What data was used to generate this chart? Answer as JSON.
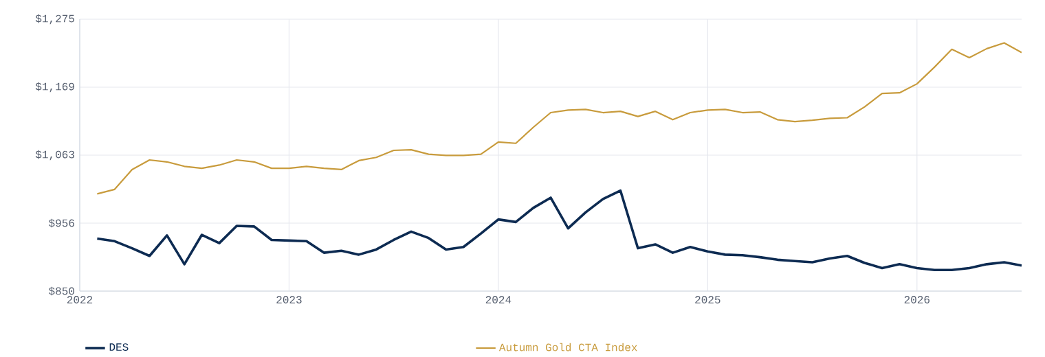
{
  "chart_data": {
    "type": "line",
    "x": [
      "2022-02",
      "2022-03",
      "2022-04",
      "2022-05",
      "2022-06",
      "2022-07",
      "2022-08",
      "2022-09",
      "2022-10",
      "2022-11",
      "2022-12",
      "2023-01",
      "2023-02",
      "2023-03",
      "2023-04",
      "2023-05",
      "2023-06",
      "2023-07",
      "2023-08",
      "2023-09",
      "2023-10",
      "2023-11",
      "2023-12",
      "2024-01",
      "2024-02",
      "2024-03",
      "2024-04",
      "2024-05",
      "2024-06",
      "2024-07",
      "2024-08",
      "2024-09",
      "2024-10",
      "2024-11",
      "2024-12",
      "2025-01",
      "2025-02",
      "2025-03",
      "2025-04",
      "2025-05",
      "2025-06",
      "2025-07",
      "2025-08",
      "2025-09",
      "2025-10",
      "2025-11",
      "2025-12",
      "2026-01",
      "2026-02",
      "2026-03",
      "2026-04",
      "2026-05",
      "2026-06",
      "2026-07"
    ],
    "series": [
      {
        "name": "DES",
        "color": "#0d2b52",
        "values": [
          932,
          928,
          917,
          905,
          937,
          892,
          938,
          925,
          952,
          951,
          930,
          929,
          928,
          910,
          913,
          907,
          915,
          930,
          943,
          933,
          915,
          919,
          940,
          962,
          958,
          980,
          996,
          948,
          973,
          994,
          1007,
          917,
          923,
          910,
          919,
          912,
          907,
          906,
          903,
          899,
          897,
          895,
          901,
          905,
          894,
          886,
          892,
          886,
          883,
          883,
          886,
          892,
          895,
          890
        ]
      },
      {
        "name": "Autumn Gold CTA Index",
        "color": "#c89b3c",
        "values": [
          1002,
          1009,
          1040,
          1055,
          1052,
          1045,
          1042,
          1047,
          1055,
          1052,
          1042,
          1042,
          1045,
          1042,
          1040,
          1054,
          1059,
          1070,
          1071,
          1064,
          1062,
          1062,
          1064,
          1083,
          1081,
          1106,
          1129,
          1133,
          1134,
          1129,
          1131,
          1123,
          1131,
          1118,
          1129,
          1133,
          1134,
          1129,
          1130,
          1118,
          1115,
          1117,
          1120,
          1121,
          1138,
          1159,
          1160,
          1174,
          1200,
          1228,
          1215,
          1229,
          1238,
          1223
        ]
      }
    ],
    "xlim": [
      "2022",
      "2026-07"
    ],
    "xticks": [
      "2022",
      "2023",
      "2024",
      "2025",
      "2026"
    ],
    "ylim": [
      850,
      1275
    ],
    "yticks": [
      {
        "value": 850,
        "label": "$850"
      },
      {
        "value": 956.25,
        "label": "$956"
      },
      {
        "value": 1062.5,
        "label": "$1,063"
      },
      {
        "value": 1168.75,
        "label": "$1,169"
      },
      {
        "value": 1275,
        "label": "$1,275"
      }
    ],
    "grid": true,
    "legend": "bottom",
    "marker": "none",
    "line_style": "solid"
  }
}
